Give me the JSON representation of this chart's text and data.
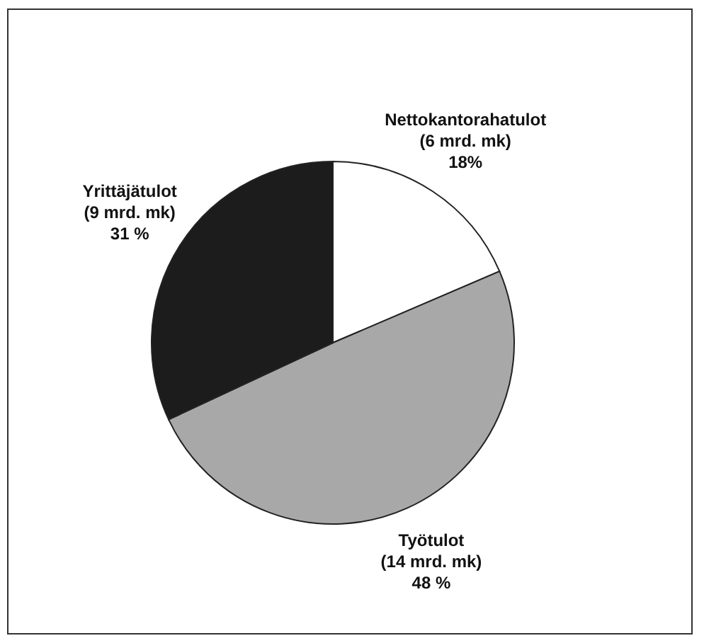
{
  "chart_data": {
    "type": "pie",
    "categories": [
      "Nettokantorahatulot",
      "Työtulot",
      "Yrittäjätulot"
    ],
    "values": [
      18,
      48,
      31
    ],
    "value_labels": [
      "(6 mrd. mk)\n18%",
      "(14 mrd. mk)\n48 %",
      "(9 mrd. mk)\n31 %"
    ],
    "colors": [
      "#ffffff",
      "#a8a8a8",
      "#1c1c1c"
    ],
    "legend": false
  }
}
